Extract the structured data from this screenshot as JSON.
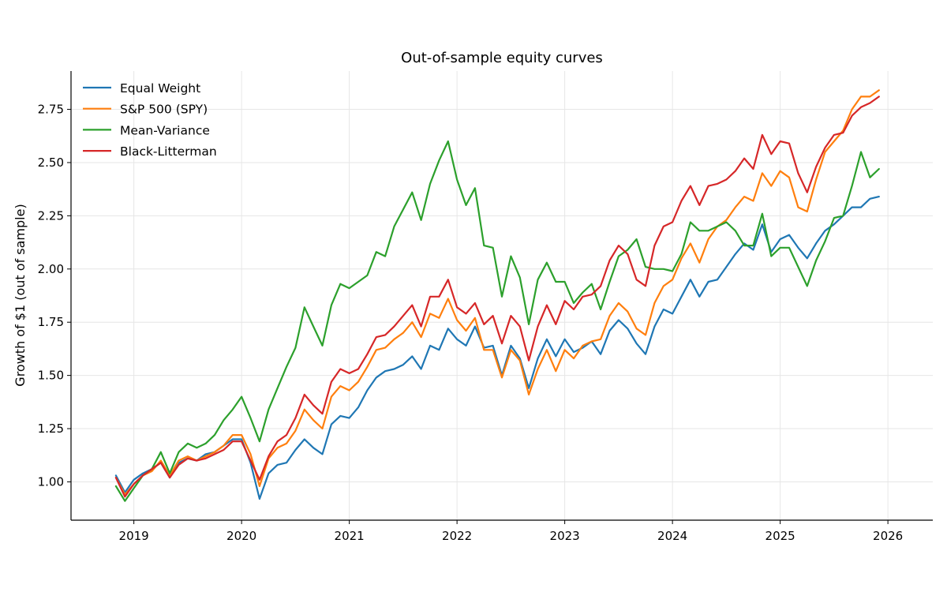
{
  "chart_data": {
    "type": "line",
    "title": "Out-of-sample equity curves",
    "xlabel": "",
    "ylabel": "Growth of $1 (out of sample)",
    "x_start": "2018-11",
    "x_step": "1 month",
    "xlim": [
      "2018-06",
      "2026-06"
    ],
    "ylim": [
      0.82,
      2.93
    ],
    "xticks": [
      "2019",
      "2020",
      "2021",
      "2022",
      "2023",
      "2024",
      "2025",
      "2026"
    ],
    "yticks": [
      "1.00",
      "1.25",
      "1.50",
      "1.75",
      "2.00",
      "2.25",
      "2.50",
      "2.75"
    ],
    "grid": true,
    "legend_position": "top-left",
    "series": [
      {
        "name": "Equal Weight",
        "color": "#1f77b4",
        "values": [
          1.03,
          0.95,
          1.01,
          1.04,
          1.06,
          1.09,
          1.02,
          1.09,
          1.11,
          1.1,
          1.13,
          1.14,
          1.17,
          1.2,
          1.2,
          1.09,
          0.92,
          1.04,
          1.08,
          1.09,
          1.15,
          1.2,
          1.16,
          1.13,
          1.27,
          1.31,
          1.3,
          1.35,
          1.43,
          1.49,
          1.52,
          1.53,
          1.55,
          1.59,
          1.53,
          1.64,
          1.62,
          1.72,
          1.67,
          1.64,
          1.73,
          1.63,
          1.64,
          1.5,
          1.64,
          1.58,
          1.44,
          1.58,
          1.67,
          1.59,
          1.67,
          1.61,
          1.63,
          1.66,
          1.6,
          1.71,
          1.76,
          1.72,
          1.65,
          1.6,
          1.73,
          1.81,
          1.79,
          1.87,
          1.95,
          1.87,
          1.94,
          1.95,
          2.01,
          2.07,
          2.12,
          2.09,
          2.21,
          2.08,
          2.14,
          2.16,
          2.1,
          2.05,
          2.12,
          2.18,
          2.21,
          2.25,
          2.29,
          2.29,
          2.33,
          2.34
        ]
      },
      {
        "name": "S&P 500 (SPY)",
        "color": "#ff7f0e",
        "values": [
          1.02,
          0.94,
          0.99,
          1.03,
          1.05,
          1.1,
          1.03,
          1.1,
          1.12,
          1.1,
          1.12,
          1.14,
          1.17,
          1.22,
          1.22,
          1.13,
          0.98,
          1.11,
          1.16,
          1.18,
          1.24,
          1.34,
          1.29,
          1.25,
          1.4,
          1.45,
          1.43,
          1.47,
          1.54,
          1.62,
          1.63,
          1.67,
          1.7,
          1.75,
          1.68,
          1.79,
          1.77,
          1.86,
          1.76,
          1.71,
          1.77,
          1.62,
          1.62,
          1.49,
          1.62,
          1.57,
          1.41,
          1.53,
          1.62,
          1.52,
          1.62,
          1.58,
          1.64,
          1.66,
          1.67,
          1.78,
          1.84,
          1.8,
          1.72,
          1.69,
          1.84,
          1.92,
          1.95,
          2.05,
          2.12,
          2.03,
          2.14,
          2.2,
          2.23,
          2.29,
          2.34,
          2.32,
          2.45,
          2.39,
          2.46,
          2.43,
          2.29,
          2.27,
          2.42,
          2.55,
          2.6,
          2.65,
          2.75,
          2.81,
          2.81,
          2.84
        ]
      },
      {
        "name": "Mean-Variance",
        "color": "#2ca02c",
        "values": [
          0.98,
          0.91,
          0.97,
          1.03,
          1.06,
          1.14,
          1.04,
          1.14,
          1.18,
          1.16,
          1.18,
          1.22,
          1.29,
          1.34,
          1.4,
          1.3,
          1.19,
          1.34,
          1.44,
          1.54,
          1.63,
          1.82,
          1.73,
          1.64,
          1.83,
          1.93,
          1.91,
          1.94,
          1.97,
          2.08,
          2.06,
          2.2,
          2.28,
          2.36,
          2.23,
          2.4,
          2.51,
          2.6,
          2.42,
          2.3,
          2.38,
          2.11,
          2.1,
          1.87,
          2.06,
          1.96,
          1.74,
          1.95,
          2.03,
          1.94,
          1.94,
          1.84,
          1.89,
          1.93,
          1.81,
          1.94,
          2.06,
          2.09,
          2.14,
          2.01,
          2.0,
          2.0,
          1.99,
          2.07,
          2.22,
          2.18,
          2.18,
          2.2,
          2.22,
          2.18,
          2.11,
          2.11,
          2.26,
          2.06,
          2.1,
          2.1,
          2.01,
          1.92,
          2.04,
          2.13,
          2.24,
          2.25,
          2.39,
          2.55,
          2.43,
          2.47
        ]
      },
      {
        "name": "Black-Litterman",
        "color": "#d62728",
        "values": [
          1.02,
          0.93,
          0.99,
          1.03,
          1.06,
          1.09,
          1.02,
          1.08,
          1.11,
          1.1,
          1.11,
          1.13,
          1.15,
          1.19,
          1.19,
          1.1,
          1.01,
          1.12,
          1.19,
          1.22,
          1.3,
          1.41,
          1.36,
          1.32,
          1.47,
          1.53,
          1.51,
          1.53,
          1.6,
          1.68,
          1.69,
          1.73,
          1.78,
          1.83,
          1.73,
          1.87,
          1.87,
          1.95,
          1.82,
          1.79,
          1.84,
          1.74,
          1.78,
          1.65,
          1.78,
          1.73,
          1.57,
          1.73,
          1.83,
          1.74,
          1.85,
          1.81,
          1.87,
          1.88,
          1.92,
          2.04,
          2.11,
          2.07,
          1.95,
          1.92,
          2.11,
          2.2,
          2.22,
          2.32,
          2.39,
          2.3,
          2.39,
          2.4,
          2.42,
          2.46,
          2.52,
          2.47,
          2.63,
          2.54,
          2.6,
          2.59,
          2.45,
          2.36,
          2.48,
          2.57,
          2.63,
          2.64,
          2.72,
          2.76,
          2.78,
          2.81
        ]
      }
    ]
  }
}
